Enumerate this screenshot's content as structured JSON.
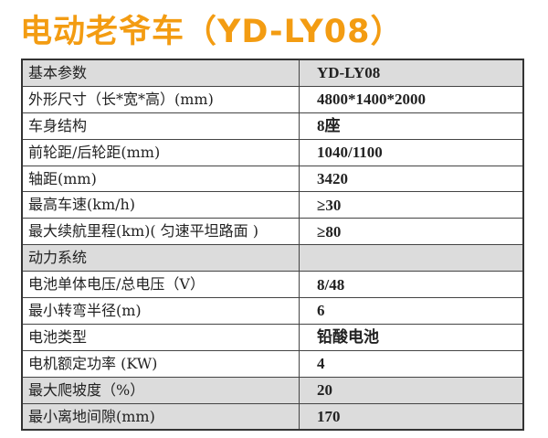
{
  "title": "电动老爷车（YD-LY08）",
  "colors": {
    "title": "#f39c12",
    "shaded_row": "#dcdcdc"
  },
  "rows": [
    {
      "label": "基本参数",
      "value": "YD-LY08",
      "shaded": true
    },
    {
      "label": "外形尺寸（长*宽*高）(mm)",
      "value": "4800*1400*2000",
      "shaded": false
    },
    {
      "label": "车身结构",
      "value": "8座",
      "shaded": false
    },
    {
      "label": "前轮距/后轮距(mm)",
      "value": "1040/1100",
      "shaded": false
    },
    {
      "label": "轴距(mm)",
      "value": "3420",
      "shaded": false
    },
    {
      "label": "最高车速(km/h)",
      "value": "≥30",
      "shaded": false
    },
    {
      "label": "最大续航里程(km)( 匀速平坦路面 )",
      "value": "≥80",
      "shaded": false
    },
    {
      "label": "动力系统",
      "value": "",
      "shaded": true
    },
    {
      "label": "电池单体电压/总电压（V）",
      "value": "8/48",
      "shaded": false
    },
    {
      "label": "最小转弯半径(m)",
      "value": "6",
      "shaded": false
    },
    {
      "label": "电池类型",
      "value": "铅酸电池",
      "shaded": false
    },
    {
      "label": "电机额定功率 (KW)",
      "value": "4",
      "shaded": false
    },
    {
      "label": "最大爬坡度（%）",
      "value": "20",
      "shaded": true
    },
    {
      "label": "最小离地间隙(mm)",
      "value": "170",
      "shaded": true
    }
  ]
}
